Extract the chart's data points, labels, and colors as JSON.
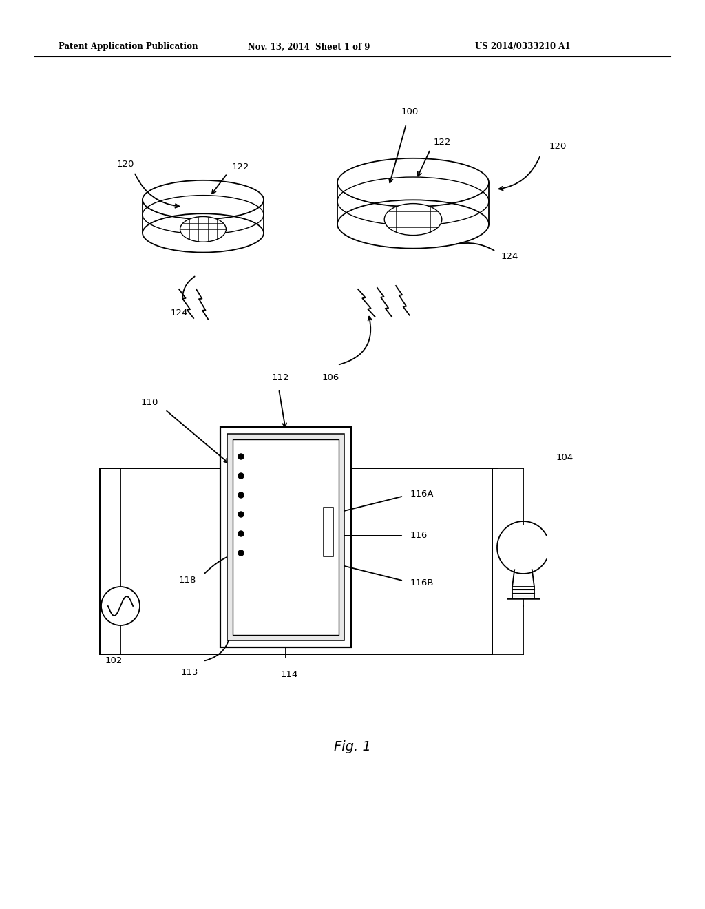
{
  "bg_color": "#ffffff",
  "line_color": "#000000",
  "header_text": "Patent Application Publication",
  "header_date": "Nov. 13, 2014  Sheet 1 of 9",
  "header_patent": "US 2014/0333210 A1",
  "fig_label": "Fig. 1"
}
